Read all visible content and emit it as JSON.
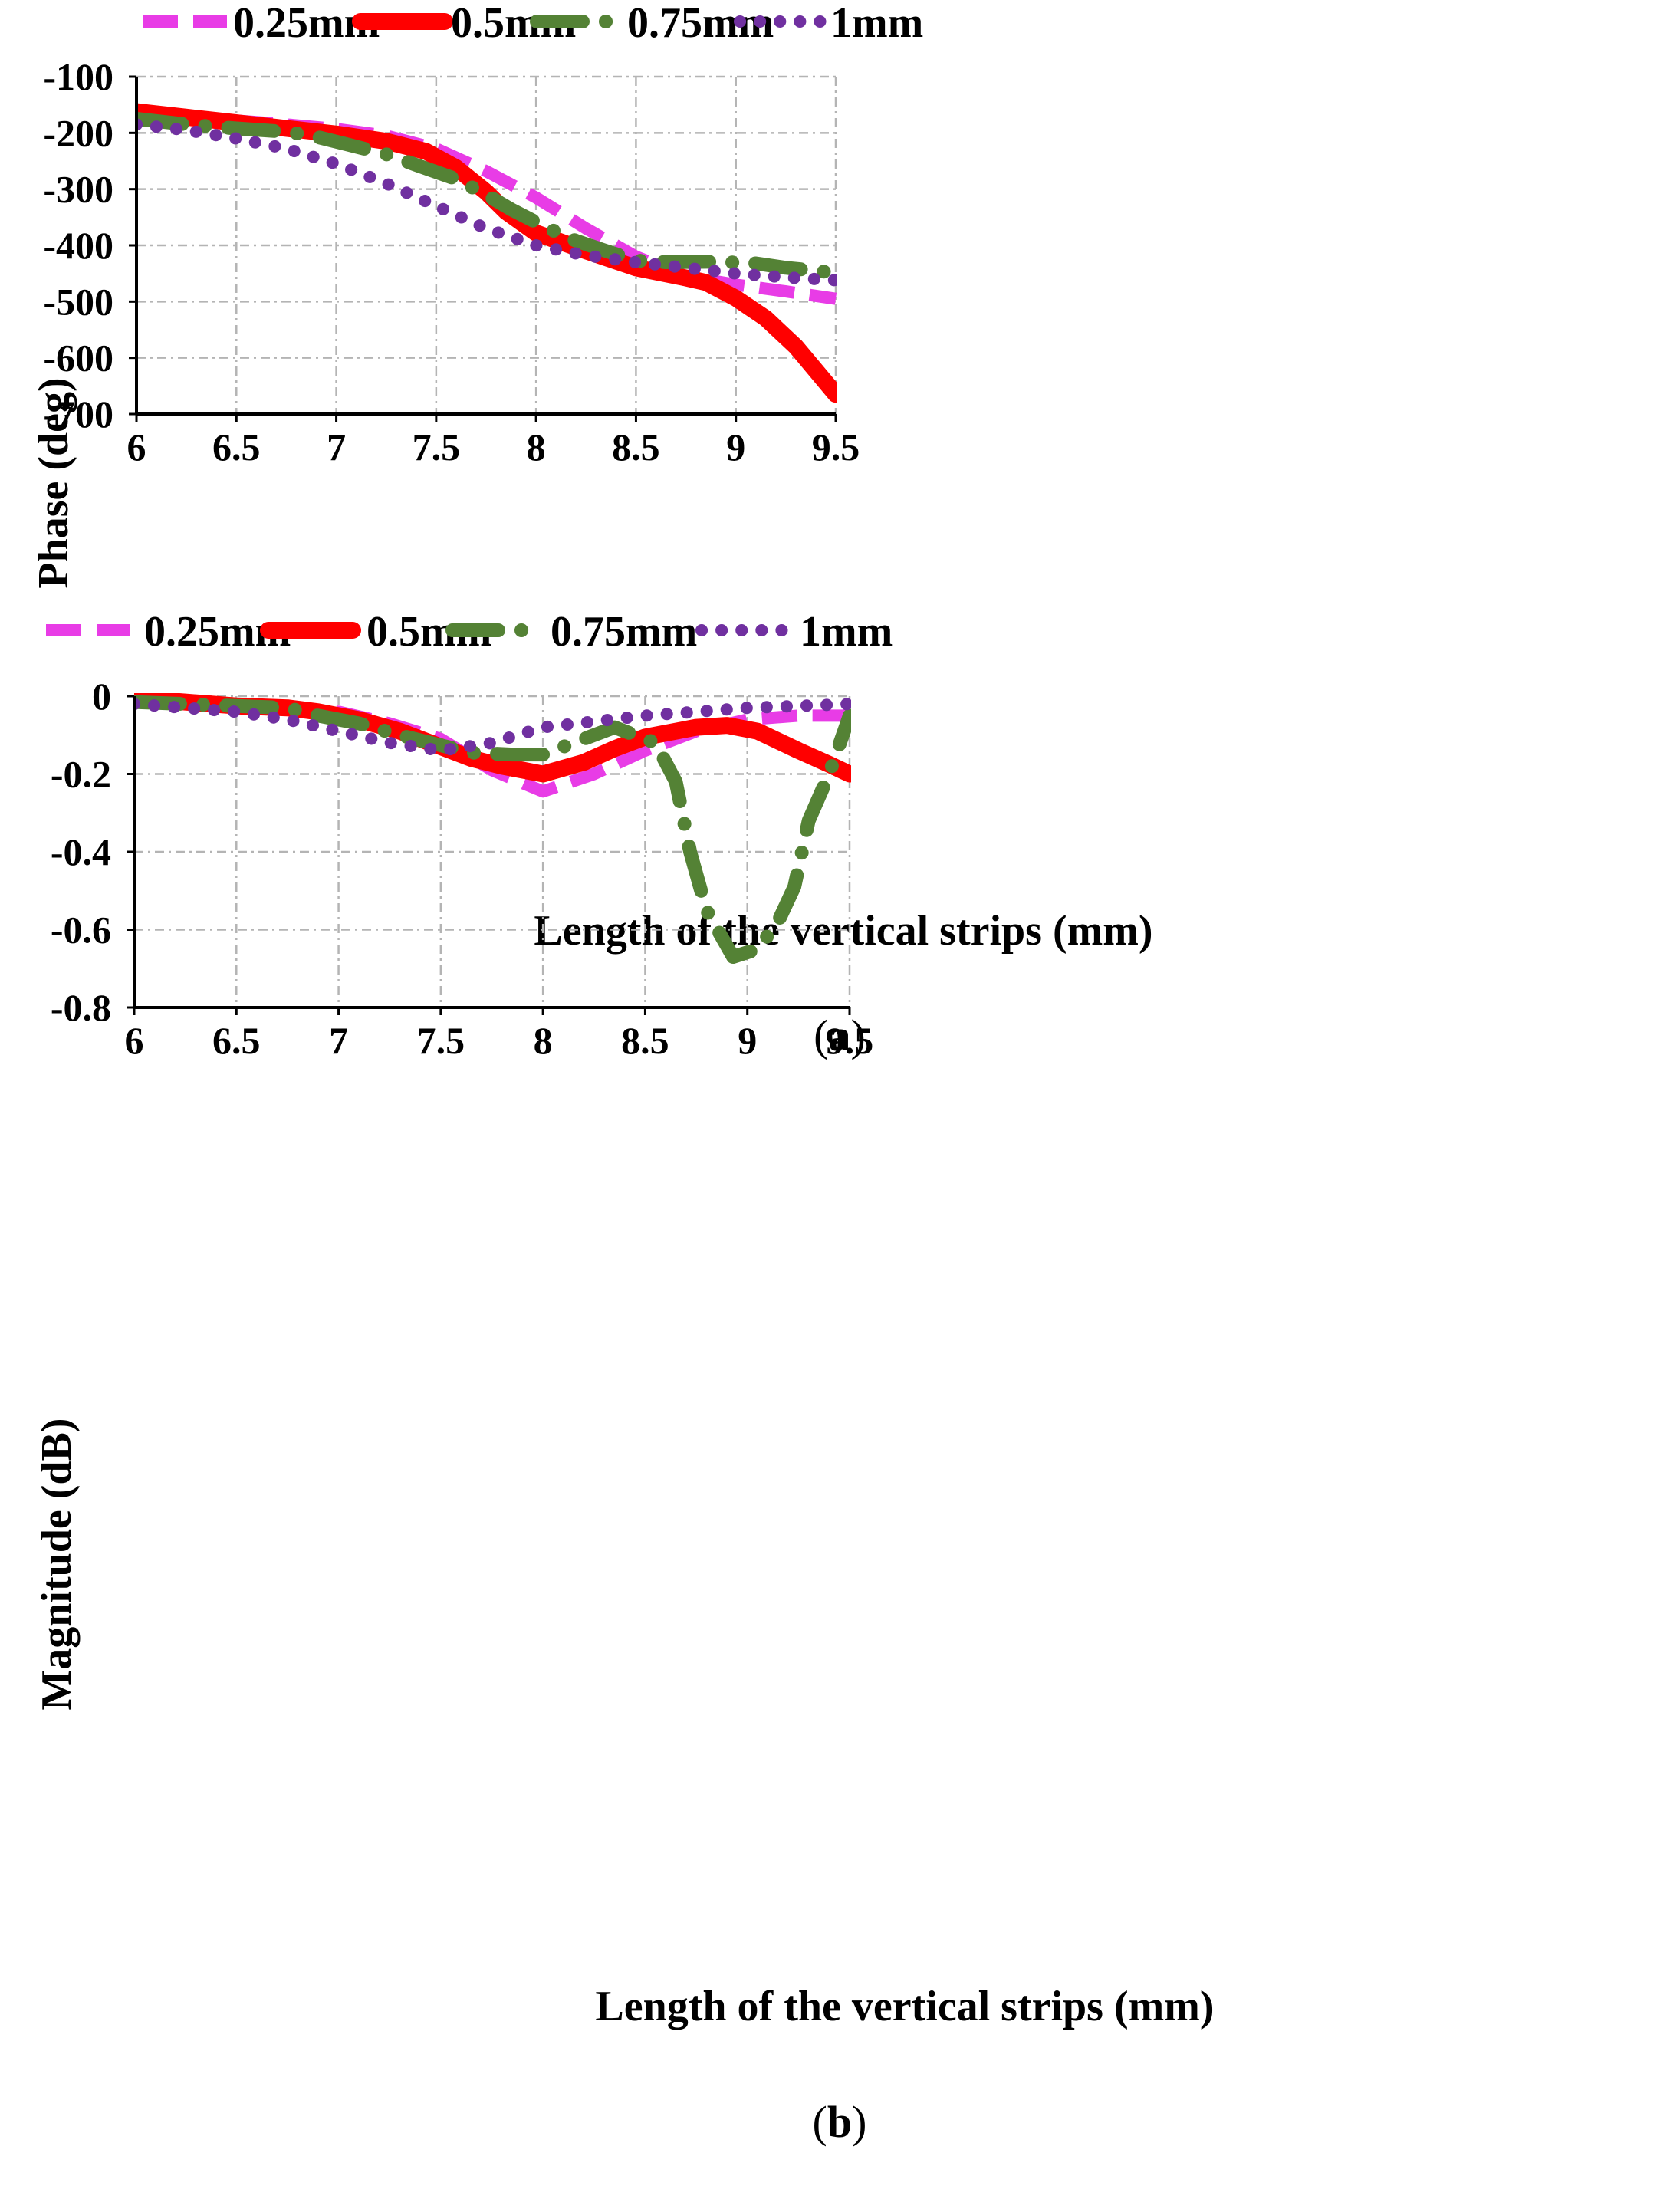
{
  "chart_data": [
    {
      "type": "line",
      "title": "",
      "xlabel": "Length of the vertical strips (mm)",
      "ylabel": "Phase (deg)",
      "xlim": [
        6,
        9.5
      ],
      "ylim": [
        -700,
        -100
      ],
      "xticks": [
        "6",
        "6.5",
        "7",
        "7.5",
        "8",
        "8.5",
        "9",
        "9.5"
      ],
      "yticks": [
        "-100",
        "-200",
        "-300",
        "-400",
        "-500",
        "-600",
        "-700"
      ],
      "caption_open": "(",
      "caption_letter": "a",
      "caption_close": ")",
      "legend": [
        "0.25mm",
        "0.5mm",
        "0.75mm",
        "1mm"
      ],
      "series": [
        {
          "name": "0.25mm",
          "color": "#e83ce6",
          "x": [
            6,
            6.25,
            6.5,
            6.75,
            7,
            7.25,
            7.5,
            7.75,
            8,
            8.25,
            8.5,
            8.75,
            9,
            9.25,
            9.5
          ],
          "y": [
            -165,
            -172,
            -178,
            -185,
            -193,
            -205,
            -228,
            -268,
            -315,
            -370,
            -420,
            -455,
            -470,
            -482,
            -495
          ]
        },
        {
          "name": "0.5mm",
          "color": "#ff0000",
          "x": [
            6,
            6.25,
            6.5,
            6.75,
            7,
            7.25,
            7.45,
            7.6,
            7.75,
            7.85,
            8,
            8.25,
            8.5,
            8.75,
            8.85,
            9,
            9.15,
            9.3,
            9.5
          ],
          "y": [
            -162,
            -172,
            -182,
            -192,
            -202,
            -215,
            -233,
            -262,
            -305,
            -340,
            -378,
            -410,
            -440,
            -458,
            -466,
            -494,
            -530,
            -580,
            -665
          ]
        },
        {
          "name": "0.75mm",
          "color": "#548235",
          "x": [
            6,
            6.25,
            6.5,
            6.75,
            6.88,
            7.05,
            7.25,
            7.4,
            7.6,
            7.75,
            7.88,
            8.05,
            8.2,
            8.35,
            8.5,
            8.65,
            8.9,
            9.1,
            9.25,
            9.45
          ],
          "y": [
            -175,
            -185,
            -192,
            -198,
            -205,
            -220,
            -238,
            -257,
            -282,
            -310,
            -337,
            -368,
            -392,
            -410,
            -427,
            -430,
            -429,
            -432,
            -440,
            -447
          ]
        },
        {
          "name": "1mm",
          "color": "#7030a0",
          "x": [
            6,
            6.25,
            6.5,
            6.75,
            7,
            7.25,
            7.5,
            7.75,
            8,
            8.25,
            8.5,
            8.75,
            9,
            9.25,
            9.5
          ],
          "y": [
            -185,
            -195,
            -210,
            -228,
            -255,
            -290,
            -330,
            -370,
            -400,
            -418,
            -430,
            -440,
            -450,
            -457,
            -462
          ]
        }
      ]
    },
    {
      "type": "line",
      "title": "",
      "xlabel": "Length of the vertical strips (mm)",
      "ylabel": "Magnitude (dB)",
      "xlim": [
        6,
        9.5
      ],
      "ylim": [
        -0.8,
        0
      ],
      "xticks": [
        "6",
        "6.5",
        "7",
        "7.5",
        "8",
        "8.5",
        "9",
        "9.5"
      ],
      "yticks": [
        "0",
        "-0.2",
        "-0.4",
        "-0.6",
        "-0.8"
      ],
      "caption_open": "(",
      "caption_letter": "b",
      "caption_close": ")",
      "legend": [
        "0.25mm",
        "0.5mm",
        "0.75mm",
        "1mm"
      ],
      "series": [
        {
          "name": "0.25mm",
          "color": "#e83ce6",
          "x": [
            6,
            6.25,
            6.5,
            6.75,
            7,
            7.25,
            7.5,
            7.75,
            8,
            8.25,
            8.5,
            8.75,
            9,
            9.25,
            9.5
          ],
          "y": [
            -0.005,
            -0.01,
            -0.02,
            -0.03,
            -0.04,
            -0.07,
            -0.11,
            -0.19,
            -0.245,
            -0.2,
            -0.14,
            -0.09,
            -0.06,
            -0.05,
            -0.05
          ]
        },
        {
          "name": "0.5mm",
          "color": "#ff0000",
          "x": [
            6,
            6.25,
            6.5,
            6.75,
            6.9,
            7.1,
            7.3,
            7.45,
            7.65,
            7.8,
            8,
            8.2,
            8.35,
            8.5,
            8.75,
            8.9,
            9.05,
            9.25,
            9.4,
            9.5
          ],
          "y": [
            -0.005,
            -0.015,
            -0.025,
            -0.03,
            -0.04,
            -0.06,
            -0.09,
            -0.12,
            -0.16,
            -0.18,
            -0.2,
            -0.17,
            -0.135,
            -0.105,
            -0.08,
            -0.075,
            -0.09,
            -0.14,
            -0.175,
            -0.2
          ]
        },
        {
          "name": "0.75mm",
          "color": "#548235",
          "x": [
            6,
            6.25,
            6.5,
            6.75,
            6.9,
            7.1,
            7.3,
            7.45,
            7.65,
            7.85,
            8,
            8.2,
            8.35,
            8.55,
            8.65,
            8.72,
            8.8,
            8.93,
            9.05,
            9.15,
            9.23,
            9.3,
            9.4,
            9.5
          ],
          "y": [
            -0.015,
            -0.02,
            -0.025,
            -0.03,
            -0.05,
            -0.07,
            -0.1,
            -0.12,
            -0.145,
            -0.15,
            -0.15,
            -0.11,
            -0.08,
            -0.12,
            -0.22,
            -0.4,
            -0.55,
            -0.67,
            -0.65,
            -0.58,
            -0.49,
            -0.32,
            -0.2,
            -0.05
          ]
        },
        {
          "name": "1mm",
          "color": "#7030a0",
          "x": [
            6,
            6.25,
            6.5,
            6.75,
            7,
            7.25,
            7.5,
            7.75,
            8,
            8.25,
            8.5,
            8.75,
            9,
            9.25,
            9.5
          ],
          "y": [
            -0.02,
            -0.03,
            -0.04,
            -0.06,
            -0.09,
            -0.12,
            -0.14,
            -0.12,
            -0.08,
            -0.065,
            -0.05,
            -0.04,
            -0.03,
            -0.025,
            -0.02
          ]
        }
      ]
    }
  ]
}
